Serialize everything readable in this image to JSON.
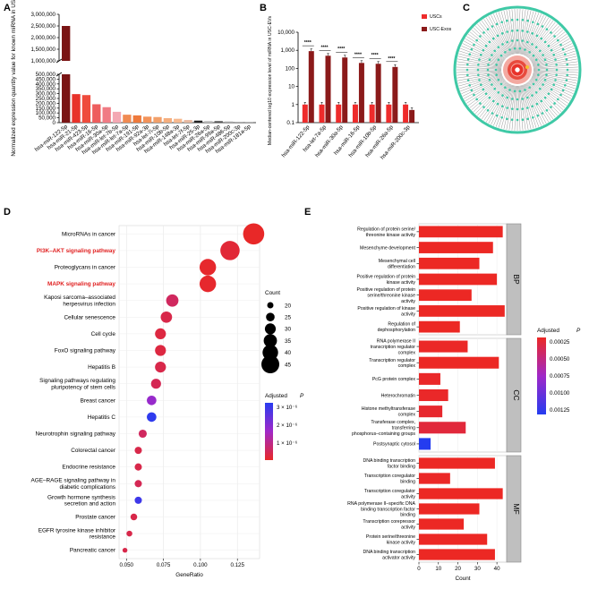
{
  "panels": {
    "a": {
      "letter": "A"
    },
    "b": {
      "letter": "B"
    },
    "c": {
      "letter": "C"
    },
    "d": {
      "letter": "D"
    },
    "e": {
      "letter": "E"
    }
  },
  "chart_data": [
    {
      "type": "bar",
      "panel": "A",
      "ylabel": "Normalized expression quantity value for known miRNA in USC-EVs",
      "categories": [
        "hsa-miR-122-5p",
        "hsa-miR-21-5p",
        "hsa-miR-423-5p",
        "hsa-miR-16-5p",
        "hsa-miR-30a-5p",
        "hsa-miR-let-7b-5p",
        "hsa-let-7a-5p",
        "hsa-miR-191-5p",
        "hsa-miR-92a-3p",
        "hsa-let-7i-5p",
        "hsa-miR-10b-5p",
        "hsa-miR-148a-3p",
        "hsa-let-7f-5p",
        "hsa-miR-25-3p",
        "hsa-miR-26a-5p",
        "hsa-miR-99a-5p",
        "hsa-miR-486-5p",
        "hsa-miR-200c-3p",
        "hsa-miR-181a-5p"
      ],
      "tick_labels": [
        "hsa-miR-122-5p",
        "hsa-miR-21-5p",
        "hsa-miR-423-5p",
        "hsa-miR-16-5p",
        "hsa-miR-30a-5p",
        "hsa-miR-let-7b-5p",
        "hsa-miR-let-7a-5p",
        "hsa-miR-191-5p",
        "hsa-miR-92a-3p",
        "hsa-let-7i-5p",
        "hsa-miR-10b-5p",
        "hsa-miR-148a-3p",
        "hsa-let-7f-5p",
        "hsa-miR-25-3p",
        "hsa-miR-26a-5p",
        "hsa-miR-99a-5p",
        "hsa-miR-486-5p",
        "hsa-miR-200c-3p",
        "hsa-miR-181a-5p"
      ],
      "values": [
        2500000,
        295000,
        285000,
        190000,
        160000,
        112000,
        82000,
        75000,
        62000,
        58000,
        46000,
        40000,
        27000,
        21000,
        17000,
        16000,
        12000,
        7000,
        5000
      ],
      "colors": [
        "#7a1414",
        "#e8322a",
        "#ef4b3c",
        "#ee5d5d",
        "#f07b84",
        "#f4a8b3",
        "#f08a52",
        "#ee7a3c",
        "#f3935a",
        "#f2a06a",
        "#f5ae7e",
        "#f7b98f",
        "#e7b9a0",
        "#222222",
        "#bcbcbc",
        "#555555",
        "#a9a9a9",
        "#999999",
        "#7f7f7f"
      ],
      "y_ticks_lower": [
        "0",
        "50,000",
        "100,000",
        "150,000",
        "200,000",
        "250,000",
        "300,000",
        "350,000",
        "400,000",
        "450,000",
        "500,000"
      ],
      "y_ticks_upper": [
        "1,000,000",
        "1,500,000",
        "2,000,000",
        "2,500,000",
        "3,000,000"
      ],
      "ylim_lower": [
        0,
        500000
      ],
      "ylim_upper": [
        1000000,
        3000000
      ]
    },
    {
      "type": "bar",
      "panel": "B",
      "ylabel": "Median-centered log10 expression level of miRNA in USC-EVs",
      "scale": "log",
      "categories": [
        "hsa-miR-122-5p",
        "hsa-let-7a-5p",
        "hsa-miR-30a-5p",
        "hsa-miR-16-5p",
        "hsa-miR-10b-5p",
        "hsa-miR-26a-5p",
        "hsa-miR-200c-3p"
      ],
      "y_ticks": [
        "0.1",
        "1",
        "10",
        "100",
        "1,000",
        "10,000"
      ],
      "ylim": [
        0.1,
        10000
      ],
      "significance": [
        "****",
        "****",
        "****",
        "****",
        "****",
        "****",
        ""
      ],
      "series": [
        {
          "name": "USCs",
          "color": "#ee2b2b",
          "values": [
            1.0,
            1.0,
            1.0,
            1.0,
            1.0,
            1.0,
            1.0
          ]
        },
        {
          "name": "USC-Exos",
          "color": "#8b1a1a",
          "values": [
            900,
            500,
            400,
            200,
            180,
            120,
            0.5
          ]
        }
      ]
    },
    {
      "type": "scatter",
      "panel": "D",
      "xlabel": "GeneRatio",
      "x_ticks": [
        0.05,
        0.075,
        0.1,
        0.125
      ],
      "x_tick_labels": [
        "0.050",
        "0.075",
        "0.100",
        "0.125"
      ],
      "xlim": [
        0.045,
        0.14
      ],
      "size_legend_title": "Count",
      "size_legend": [
        20,
        25,
        30,
        35,
        40,
        45
      ],
      "color_legend_title": "Adjusted",
      "color_legend_title_p": "P",
      "color_legend_ticks": [
        "3 × 10⁻⁶",
        "2 × 10⁻⁶",
        "1 × 10⁻⁶"
      ],
      "terms": [
        {
          "label": "MicroRNAs in cancer",
          "gene_ratio": 0.136,
          "count": 52,
          "p": 5e-08,
          "highlight": false
        },
        {
          "label": "PI3K–AKT signaling pathway",
          "gene_ratio": 0.12,
          "count": 48,
          "p": 2e-07,
          "highlight": true
        },
        {
          "label": "Proteoglycans in cancer",
          "gene_ratio": 0.105,
          "count": 42,
          "p": 1e-07,
          "highlight": false
        },
        {
          "label": "MAPK signaling pathway",
          "gene_ratio": 0.105,
          "count": 42,
          "p": 1e-07,
          "highlight": true
        },
        {
          "label": "Kaposi sarcoma–associated herpesvirus infection",
          "gene_ratio": 0.081,
          "count": 33,
          "p": 6e-07,
          "highlight": false
        },
        {
          "label": "Cellular senescence",
          "gene_ratio": 0.077,
          "count": 31,
          "p": 4e-07,
          "highlight": false
        },
        {
          "label": "Cell cycle",
          "gene_ratio": 0.073,
          "count": 30,
          "p": 3e-07,
          "highlight": false
        },
        {
          "label": "FoxO signaling pathway",
          "gene_ratio": 0.073,
          "count": 30,
          "p": 3e-07,
          "highlight": false
        },
        {
          "label": "Hepatitis B",
          "gene_ratio": 0.073,
          "count": 30,
          "p": 4e-07,
          "highlight": false
        },
        {
          "label": "Signaling pathways regulating pluripotency of stem cells",
          "gene_ratio": 0.07,
          "count": 28,
          "p": 5e-07,
          "highlight": false
        },
        {
          "label": "Breast cancer",
          "gene_ratio": 0.067,
          "count": 27,
          "p": 1.8e-06,
          "highlight": false
        },
        {
          "label": "Hepatitis C",
          "gene_ratio": 0.067,
          "count": 27,
          "p": 3.2e-06,
          "highlight": false
        },
        {
          "label": "Neurotrophin signaling pathway",
          "gene_ratio": 0.061,
          "count": 24,
          "p": 6e-07,
          "highlight": false
        },
        {
          "label": "Colorectal cancer",
          "gene_ratio": 0.058,
          "count": 22,
          "p": 4e-07,
          "highlight": false
        },
        {
          "label": "Endocrine resistance",
          "gene_ratio": 0.058,
          "count": 22,
          "p": 4e-07,
          "highlight": false
        },
        {
          "label": "AGE–RAGE signaling pathway in diabetic complications",
          "gene_ratio": 0.058,
          "count": 22,
          "p": 5e-07,
          "highlight": false
        },
        {
          "label": "Growth hormone synthesis secretion and action",
          "gene_ratio": 0.058,
          "count": 22,
          "p": 3e-06,
          "highlight": false
        },
        {
          "label": "Prostate cancer",
          "gene_ratio": 0.055,
          "count": 21,
          "p": 4e-07,
          "highlight": false
        },
        {
          "label": "EGFR tyrosine kinase inhibitor resistance",
          "gene_ratio": 0.052,
          "count": 19,
          "p": 4e-07,
          "highlight": false
        },
        {
          "label": "Pancreatic cancer",
          "gene_ratio": 0.049,
          "count": 17,
          "p": 4e-07,
          "highlight": false
        }
      ]
    },
    {
      "type": "bar",
      "panel": "E",
      "orientation": "horizontal",
      "xlabel": "Count",
      "x_ticks": [
        0,
        10,
        20,
        30,
        40
      ],
      "xlim": [
        0,
        45
      ],
      "color_legend_title": "Adjusted",
      "color_legend_title_p": "P",
      "color_legend_ticks": [
        "0.00025",
        "0.00050",
        "0.00075",
        "0.00100",
        "0.00125"
      ],
      "groups": [
        {
          "name": "BP",
          "terms": [
            {
              "label": "Regulation of protein serine/ threonine kinase activity",
              "count": 43,
              "p": 1e-05
            },
            {
              "label": "Mesenchyme development",
              "count": 38,
              "p": 1e-05
            },
            {
              "label": "Mesenchymal cell differentiation",
              "count": 31,
              "p": 1e-05
            },
            {
              "label": "Positive regulation of protein kinase activity",
              "count": 40,
              "p": 1e-05
            },
            {
              "label": "Positive regulation of protein serine/threonine kinase activity",
              "count": 27,
              "p": 1e-05
            },
            {
              "label": "Positive regulation of kinase activity",
              "count": 44,
              "p": 1e-05
            },
            {
              "label": "Regulation of dephosphorylation",
              "count": 21,
              "p": 1e-05
            }
          ]
        },
        {
          "name": "CC",
          "terms": [
            {
              "label": "RNA polymerase II transcription regulator complex",
              "count": 25,
              "p": 2e-05
            },
            {
              "label": "Transcription regulator complex",
              "count": 41,
              "p": 1e-05
            },
            {
              "label": "PcG protein complex",
              "count": 11,
              "p": 3e-05
            },
            {
              "label": "Heterochromatin",
              "count": 15,
              "p": 3e-05
            },
            {
              "label": "Histone methyltransferase complex",
              "count": 12,
              "p": 5e-05
            },
            {
              "label": "Transferase complex, transferring phosphorus–containing groups",
              "count": 24,
              "p": 0.0001
            },
            {
              "label": "Postsynaptic cytosol",
              "count": 6,
              "p": 0.0013
            }
          ]
        },
        {
          "name": "MF",
          "terms": [
            {
              "label": "DNA binding transcription factor binding",
              "count": 39,
              "p": 1e-05
            },
            {
              "label": "Transcription coregulator binding",
              "count": 16,
              "p": 2e-05
            },
            {
              "label": "Transcription coregulator activity",
              "count": 43,
              "p": 1e-05
            },
            {
              "label": "RNA polymerase II–specific DNA binding transcription factor binding",
              "count": 31,
              "p": 1e-05
            },
            {
              "label": "Transcription corepressor activity",
              "count": 23,
              "p": 1e-05
            },
            {
              "label": "Protein serine/threonine kinase activity",
              "count": 35,
              "p": 1e-05
            },
            {
              "label": "DNA binding transcription activator activity",
              "count": 39,
              "p": 1e-05
            }
          ]
        }
      ]
    }
  ]
}
